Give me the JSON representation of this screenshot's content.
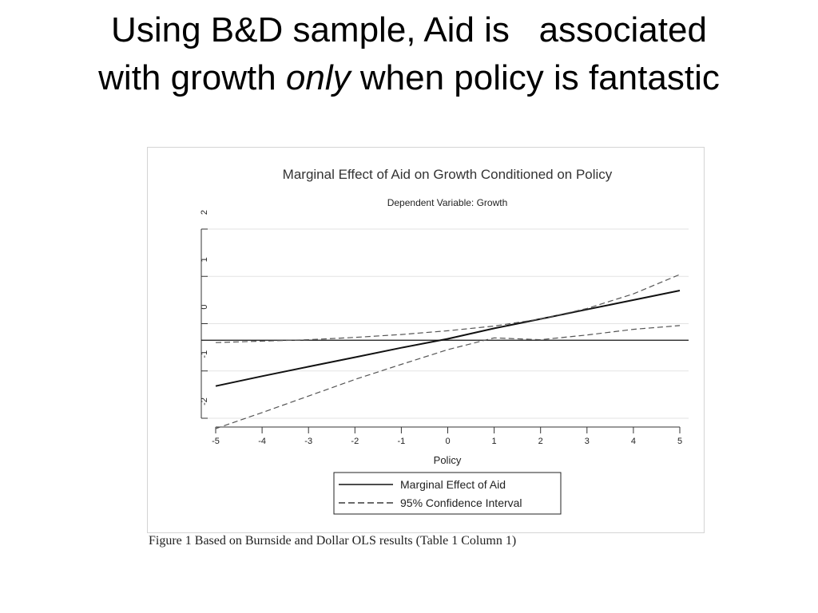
{
  "slide": {
    "title_line1": "Using B&D sample, Aid is   associated",
    "title_line2_pre": "with growth ",
    "title_line2_em": "only",
    "title_line2_post": " when policy is fantastic"
  },
  "caption": "Figure 1  Based on Burnside and Dollar OLS results (Table 1 Column 1)",
  "chart_data": {
    "type": "line",
    "title": "Marginal Effect of Aid on Growth Conditioned on Policy",
    "subtitle": "Dependent Variable: Growth",
    "xlabel": "Policy",
    "ylabel": "",
    "xlim": [
      -5,
      5
    ],
    "ylim": [
      -2,
      2
    ],
    "xticks": [
      "-5",
      "-4",
      "-3",
      "-2",
      "-1",
      "0",
      "1",
      "2",
      "3",
      "4",
      "5"
    ],
    "yticks": [
      "-2",
      "-1",
      "0",
      "1",
      "2"
    ],
    "grid": "horizontal",
    "reference_line_y": -0.35,
    "x": [
      -5,
      -4,
      -3,
      -2,
      -1,
      0,
      1,
      2,
      3,
      4,
      5
    ],
    "series": [
      {
        "name": "Marginal Effect of Aid",
        "style": "solid",
        "values": [
          -1.32,
          -1.11,
          -0.91,
          -0.71,
          -0.51,
          -0.32,
          -0.1,
          0.1,
          0.3,
          0.5,
          0.7
        ]
      },
      {
        "name": "95% Confidence Interval",
        "style": "dashed",
        "values": [
          -0.4,
          -0.37,
          -0.34,
          -0.29,
          -0.23,
          -0.15,
          -0.05,
          0.1,
          0.32,
          0.63,
          1.04
        ]
      },
      {
        "name": "95% Confidence Interval",
        "style": "dashed",
        "values": [
          -2.22,
          -1.88,
          -1.53,
          -1.18,
          -0.86,
          -0.55,
          -0.3,
          -0.34,
          -0.24,
          -0.12,
          -0.04
        ]
      }
    ],
    "legend": {
      "position": "bottom-center",
      "items": [
        "Marginal Effect of Aid",
        "95% Confidence Interval"
      ]
    }
  }
}
